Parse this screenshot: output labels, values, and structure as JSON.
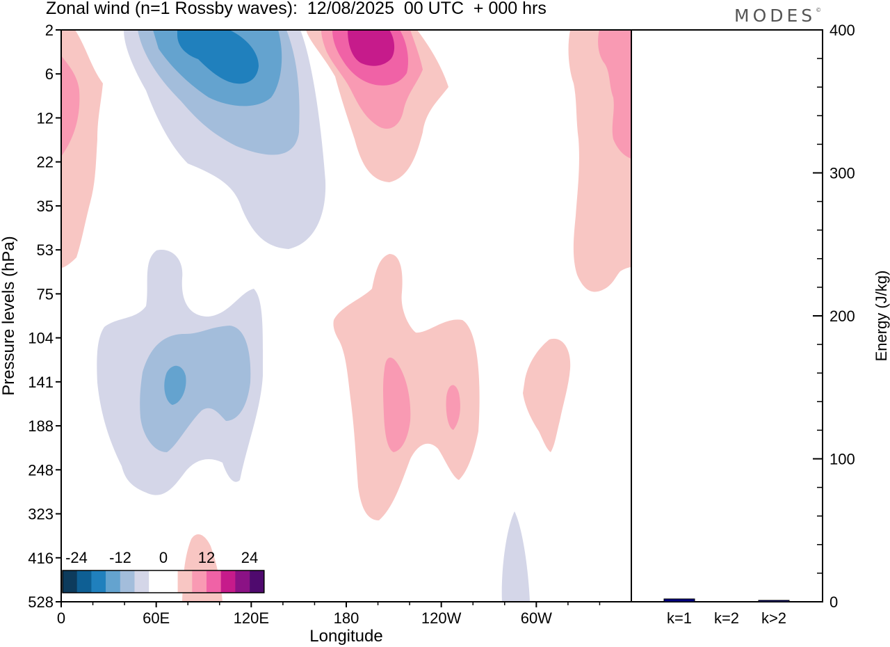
{
  "title": "Zonal wind (n=1 Rossby waves):  12/08/2025  00 UTC  + 000 hrs",
  "logo": {
    "text": "MODES",
    "mark": "©"
  },
  "chart_data": [
    {
      "type": "heatmap",
      "title": "Zonal wind (n=1 Rossby waves):  12/08/2025  00 UTC  + 000 hrs",
      "xlabel": "Longitude",
      "ylabel": "Pressure levels (hPa)",
      "x_ticks": [
        "0",
        "60E",
        "120E",
        "180",
        "120W",
        "60W"
      ],
      "y_ticks": [
        "2",
        "6",
        "12",
        "22",
        "35",
        "53",
        "75",
        "104",
        "141",
        "188",
        "248",
        "323",
        "416",
        "528"
      ],
      "colorbar": {
        "labels": [
          "-24",
          "-12",
          "0",
          "12",
          "24"
        ],
        "colors": [
          "#0d3b5c",
          "#0e5f94",
          "#2080bd",
          "#64a3cf",
          "#a3bddb",
          "#d4d6e8",
          "#ffffff",
          "#ffffff",
          "#f8c6c3",
          "#f99ab3",
          "#f062a6",
          "#c61b8b",
          "#8b1285",
          "#4f0a6e"
        ]
      },
      "colors": {
        "neg_weak": "#d4d6e8",
        "neg_mid": "#a3bddb",
        "neg_strong": "#64a3cf",
        "neg_stronger": "#2080bd",
        "pos_weak": "#f8c6c3",
        "pos_mid": "#f99ab3",
        "pos_strong": "#f062a6",
        "pos_stronger": "#c61b8b"
      }
    },
    {
      "type": "bar",
      "categories": [
        "k=1",
        "k=2",
        "k>2"
      ],
      "values": [
        2,
        0,
        1
      ],
      "ylabel": "Energy (J/kg)",
      "ylim": [
        0,
        400
      ],
      "y_ticks": [
        "0",
        "100",
        "200",
        "300",
        "400"
      ],
      "bar_colors": [
        "#000080",
        "#000080",
        "#000080"
      ]
    }
  ]
}
